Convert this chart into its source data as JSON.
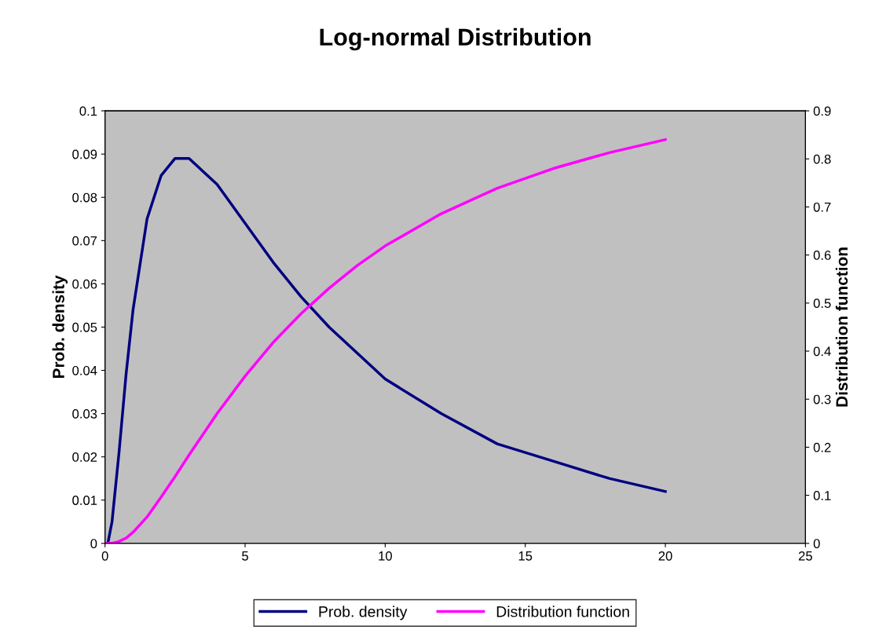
{
  "chart_data": {
    "type": "line",
    "title": "Log-normal Distribution",
    "ylabel": "Prob. density",
    "y2label": "Distribution function",
    "x": [
      0,
      0.1,
      0.25,
      0.5,
      0.75,
      1,
      1.5,
      2,
      2.5,
      3,
      4,
      5,
      6,
      7,
      8,
      9,
      10,
      12,
      14,
      16,
      18,
      20
    ],
    "series": [
      {
        "name": "Prob. density",
        "color": "#000080",
        "values": [
          0,
          0.0,
          0.005,
          0.021,
          0.039,
          0.054,
          0.075,
          0.085,
          0.089,
          0.089,
          0.083,
          0.074,
          0.065,
          0.057,
          0.05,
          0.044,
          0.038,
          0.03,
          0.023,
          0.019,
          0.015,
          0.012
        ]
      },
      {
        "name": "Distribution function",
        "color": "#ff00ff",
        "axis": "y2",
        "values": [
          0,
          0.0,
          0.0,
          0.004,
          0.011,
          0.023,
          0.055,
          0.096,
          0.139,
          0.184,
          0.27,
          0.348,
          0.418,
          0.478,
          0.531,
          0.578,
          0.619,
          0.686,
          0.739,
          0.78,
          0.813,
          0.84
        ]
      }
    ],
    "xlim": [
      0,
      25
    ],
    "xticks": [
      0,
      5,
      10,
      15,
      20,
      25
    ],
    "ylim": [
      0,
      0.1
    ],
    "yticks": [
      0,
      0.01,
      0.02,
      0.03,
      0.04,
      0.05,
      0.06,
      0.07,
      0.08,
      0.09,
      0.1
    ],
    "y2lim": [
      0,
      0.9
    ],
    "y2ticks": [
      0,
      0.1,
      0.2,
      0.3,
      0.4,
      0.5,
      0.6,
      0.7,
      0.8,
      0.9
    ],
    "grid": false,
    "legend": "bottom",
    "marker": "none",
    "line_style": "solid"
  }
}
